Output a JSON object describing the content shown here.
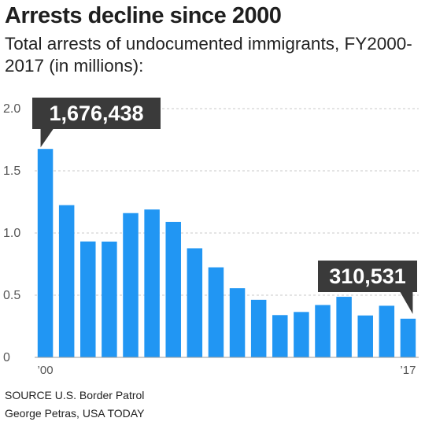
{
  "title": "Arrests decline since 2000",
  "subtitle": "Total arrests of undocumented immigrants, FY2000-2017 (in millions):",
  "chart_data": {
    "type": "bar",
    "categories": [
      "2000",
      "2001",
      "2002",
      "2003",
      "2004",
      "2005",
      "2006",
      "2007",
      "2008",
      "2009",
      "2010",
      "2011",
      "2012",
      "2013",
      "2014",
      "2015",
      "2016",
      "2017"
    ],
    "values": [
      1.676,
      1.224,
      0.932,
      0.931,
      1.16,
      1.189,
      1.089,
      0.877,
      0.724,
      0.556,
      0.463,
      0.34,
      0.365,
      0.421,
      0.487,
      0.337,
      0.415,
      0.311
    ],
    "ylim": [
      0,
      2.0
    ],
    "yticks": [
      0,
      0.5,
      1.0,
      1.5,
      2.0
    ],
    "ytick_labels": [
      "0",
      "0.5",
      "1.0",
      "1.5",
      "2.0"
    ],
    "xtick_labels": {
      "first": "’00",
      "last": "’17"
    },
    "grid": true,
    "bar_color": "#2196f3",
    "annotations": [
      {
        "category": "2000",
        "text": "1,676,438"
      },
      {
        "category": "2017",
        "text": "310,531"
      }
    ]
  },
  "source": "SOURCE U.S. Border Patrol",
  "credit": "George Petras, USA TODAY"
}
